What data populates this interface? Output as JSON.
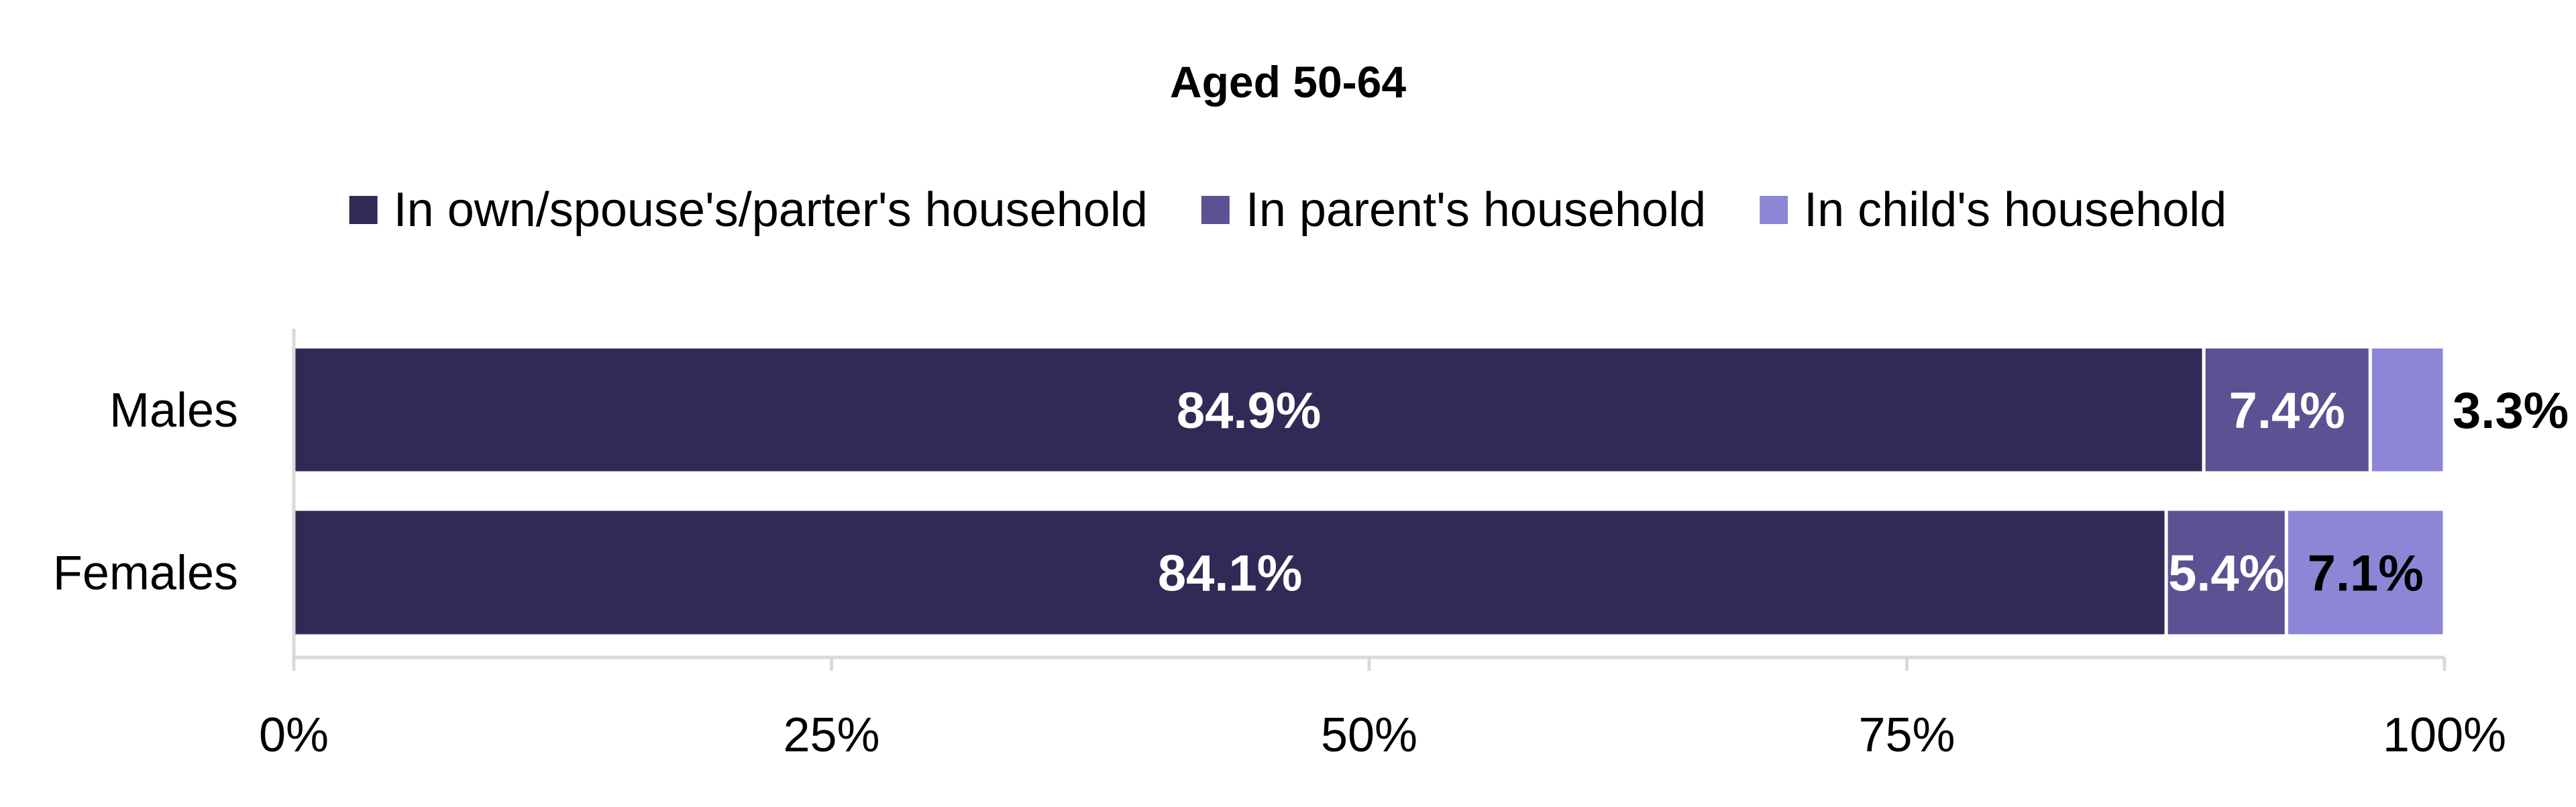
{
  "chart_data": {
    "type": "bar",
    "orientation": "horizontal",
    "stacked": "percent",
    "title": "Aged 50-64",
    "categories": [
      "Males",
      "Females"
    ],
    "series": [
      {
        "name": "In own/spouse's/parter's household",
        "values": [
          84.9,
          84.1
        ],
        "labels": [
          "84.9%",
          "84.1%"
        ],
        "color": "#302a57",
        "label_color": "#ffffff"
      },
      {
        "name": "In parent's household",
        "values": [
          7.4,
          5.4
        ],
        "labels": [
          "7.4%",
          "5.4%"
        ],
        "color": "#5a5293",
        "label_color": "#ffffff"
      },
      {
        "name": "In child's household",
        "values": [
          3.3,
          7.1
        ],
        "labels": [
          "3.3%",
          "7.1%"
        ],
        "color": "#8d86d7",
        "label_color": "#000000"
      }
    ],
    "xlim": [
      0,
      100
    ],
    "xticks": [
      "0%",
      "25%",
      "50%",
      "75%",
      "100%"
    ],
    "xlabel": "",
    "ylabel": "",
    "grid": false,
    "legend": "top"
  }
}
